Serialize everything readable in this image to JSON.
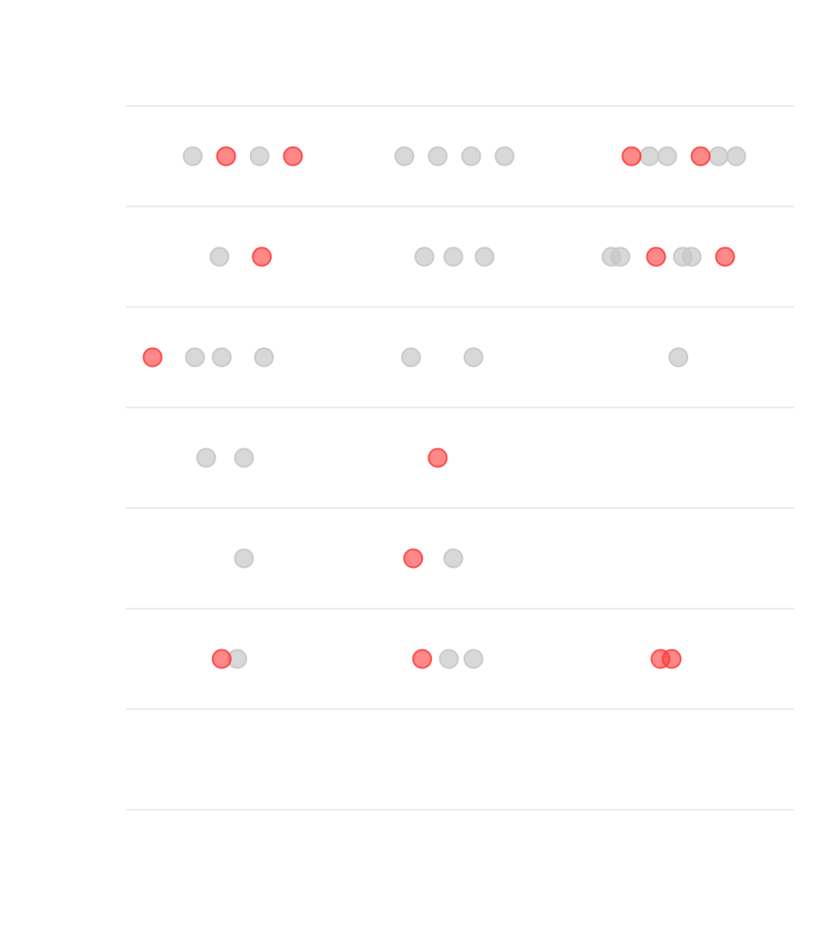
{
  "chart_data": {
    "type": "scatter",
    "title": "",
    "xlabel": "",
    "ylabel": "",
    "grid": true,
    "colors": {
      "highlight": "#ff3b3b",
      "default": "#c8c8c8",
      "gridline": "#e6e6e6"
    },
    "rows": 7,
    "columns": 3,
    "xlim": [
      0,
      1
    ],
    "points": [
      {
        "row": 0,
        "col": 0,
        "x": 0.3,
        "h": false
      },
      {
        "row": 0,
        "col": 0,
        "x": 0.45,
        "h": true
      },
      {
        "row": 0,
        "col": 0,
        "x": 0.6,
        "h": false
      },
      {
        "row": 0,
        "col": 0,
        "x": 0.75,
        "h": true
      },
      {
        "row": 0,
        "col": 1,
        "x": 0.25,
        "h": false
      },
      {
        "row": 0,
        "col": 1,
        "x": 0.4,
        "h": false
      },
      {
        "row": 0,
        "col": 1,
        "x": 0.55,
        "h": false
      },
      {
        "row": 0,
        "col": 1,
        "x": 0.7,
        "h": false
      },
      {
        "row": 0,
        "col": 2,
        "x": 0.27,
        "h": true
      },
      {
        "row": 0,
        "col": 2,
        "x": 0.35,
        "h": false
      },
      {
        "row": 0,
        "col": 2,
        "x": 0.43,
        "h": false
      },
      {
        "row": 0,
        "col": 2,
        "x": 0.58,
        "h": true
      },
      {
        "row": 0,
        "col": 2,
        "x": 0.66,
        "h": false
      },
      {
        "row": 0,
        "col": 2,
        "x": 0.74,
        "h": false
      },
      {
        "row": 1,
        "col": 0,
        "x": 0.42,
        "h": false
      },
      {
        "row": 1,
        "col": 0,
        "x": 0.61,
        "h": true
      },
      {
        "row": 1,
        "col": 1,
        "x": 0.34,
        "h": false
      },
      {
        "row": 1,
        "col": 1,
        "x": 0.47,
        "h": false
      },
      {
        "row": 1,
        "col": 1,
        "x": 0.61,
        "h": false
      },
      {
        "row": 1,
        "col": 2,
        "x": 0.18,
        "h": false
      },
      {
        "row": 1,
        "col": 2,
        "x": 0.22,
        "h": false
      },
      {
        "row": 1,
        "col": 2,
        "x": 0.38,
        "h": true
      },
      {
        "row": 1,
        "col": 2,
        "x": 0.5,
        "h": false
      },
      {
        "row": 1,
        "col": 2,
        "x": 0.54,
        "h": false
      },
      {
        "row": 1,
        "col": 2,
        "x": 0.69,
        "h": true
      },
      {
        "row": 2,
        "col": 0,
        "x": 0.12,
        "h": true
      },
      {
        "row": 2,
        "col": 0,
        "x": 0.31,
        "h": false
      },
      {
        "row": 2,
        "col": 0,
        "x": 0.43,
        "h": false
      },
      {
        "row": 2,
        "col": 0,
        "x": 0.62,
        "h": false
      },
      {
        "row": 2,
        "col": 1,
        "x": 0.28,
        "h": false
      },
      {
        "row": 2,
        "col": 1,
        "x": 0.56,
        "h": false
      },
      {
        "row": 2,
        "col": 2,
        "x": 0.48,
        "h": false
      },
      {
        "row": 3,
        "col": 0,
        "x": 0.36,
        "h": false
      },
      {
        "row": 3,
        "col": 0,
        "x": 0.53,
        "h": false
      },
      {
        "row": 3,
        "col": 1,
        "x": 0.4,
        "h": true
      },
      {
        "row": 4,
        "col": 0,
        "x": 0.53,
        "h": false
      },
      {
        "row": 4,
        "col": 1,
        "x": 0.29,
        "h": true
      },
      {
        "row": 4,
        "col": 1,
        "x": 0.47,
        "h": false
      },
      {
        "row": 5,
        "col": 0,
        "x": 0.43,
        "h": true
      },
      {
        "row": 5,
        "col": 0,
        "x": 0.5,
        "h": false
      },
      {
        "row": 5,
        "col": 1,
        "x": 0.33,
        "h": true
      },
      {
        "row": 5,
        "col": 1,
        "x": 0.45,
        "h": false
      },
      {
        "row": 5,
        "col": 1,
        "x": 0.56,
        "h": false
      },
      {
        "row": 5,
        "col": 2,
        "x": 0.4,
        "h": true
      },
      {
        "row": 5,
        "col": 2,
        "x": 0.45,
        "h": true
      }
    ]
  }
}
